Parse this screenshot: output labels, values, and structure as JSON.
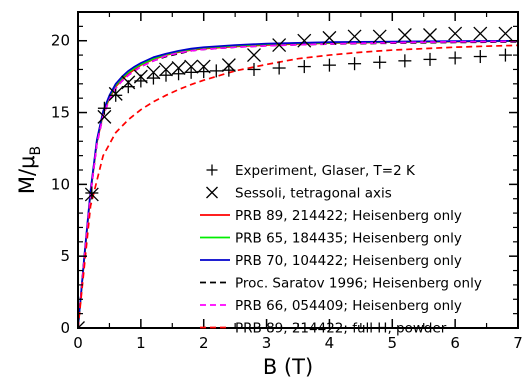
{
  "chart_data": {
    "type": "line",
    "xlabel": "B  (T)",
    "ylabel_main": "M/μ",
    "ylabel_sub": "B",
    "xlim": [
      0,
      7
    ],
    "ylim": [
      0,
      22
    ],
    "x_ticks": [
      0,
      1,
      2,
      3,
      4,
      5,
      6,
      7
    ],
    "y_ticks": [
      0,
      5,
      10,
      15,
      20
    ],
    "x_tick_labels": [
      "0",
      "1",
      "2",
      "3",
      "4",
      "5",
      "6",
      "7"
    ],
    "y_tick_labels": [
      "0",
      "5",
      "10",
      "15",
      "20"
    ],
    "grid": false,
    "legend_position": "center-right",
    "series": [
      {
        "name": "Experiment, Glaser, T=2 K",
        "style": "markers",
        "marker": "plus",
        "color": "#000000",
        "x": [
          0.0,
          0.22,
          0.42,
          0.6,
          0.8,
          1.0,
          1.2,
          1.4,
          1.6,
          1.8,
          2.0,
          2.2,
          2.4,
          2.8,
          3.2,
          3.6,
          4.0,
          4.4,
          4.8,
          5.2,
          5.6,
          6.0,
          6.4,
          6.8
        ],
        "y": [
          0.0,
          9.4,
          15.3,
          16.2,
          16.8,
          17.2,
          17.4,
          17.6,
          17.7,
          17.8,
          17.85,
          17.9,
          17.95,
          18.0,
          18.1,
          18.2,
          18.3,
          18.4,
          18.5,
          18.6,
          18.7,
          18.8,
          18.9,
          19.0
        ]
      },
      {
        "name": "Sessoli, tetragonal axis",
        "style": "markers",
        "marker": "x",
        "color": "#000000",
        "x": [
          0.0,
          0.22,
          0.42,
          0.6,
          0.8,
          1.0,
          1.2,
          1.4,
          1.6,
          1.8,
          2.0,
          2.4,
          2.8,
          3.2,
          3.6,
          4.0,
          4.4,
          4.8,
          5.2,
          5.6,
          6.0,
          6.4,
          6.8
        ],
        "y": [
          0.0,
          9.3,
          14.7,
          16.3,
          17.1,
          17.5,
          17.8,
          18.0,
          18.1,
          18.2,
          18.2,
          18.3,
          19.0,
          19.7,
          20.0,
          20.2,
          20.3,
          20.3,
          20.4,
          20.4,
          20.5,
          20.5,
          20.5
        ]
      },
      {
        "name": "PRB 89, 214422; Heisenberg only",
        "style": "solid",
        "color": "#ff0000",
        "x": [
          0,
          0.1,
          0.2,
          0.3,
          0.4,
          0.5,
          0.6,
          0.7,
          0.8,
          0.9,
          1.0,
          1.2,
          1.4,
          1.6,
          1.8,
          2.0,
          2.5,
          3.0,
          3.5,
          4.0,
          4.5,
          5.0,
          5.5,
          6.0,
          6.5,
          7.0
        ],
        "y": [
          0,
          4.8,
          9.4,
          12.9,
          14.9,
          16.0,
          16.8,
          17.3,
          17.7,
          18.0,
          18.3,
          18.7,
          19.0,
          19.2,
          19.35,
          19.45,
          19.6,
          19.7,
          19.78,
          19.83,
          19.87,
          19.9,
          19.92,
          19.94,
          19.96,
          19.97
        ]
      },
      {
        "name": "PRB 65, 184435; Heisenberg only",
        "style": "solid",
        "color": "#00ee00",
        "x": [
          0,
          0.1,
          0.2,
          0.3,
          0.4,
          0.5,
          0.6,
          0.7,
          0.8,
          0.9,
          1.0,
          1.2,
          1.4,
          1.6,
          1.8,
          2.0,
          2.5,
          3.0,
          3.5,
          4.0,
          4.5,
          5.0,
          5.5,
          6.0,
          6.5,
          7.0
        ],
        "y": [
          0,
          4.9,
          9.5,
          13.0,
          15.0,
          16.1,
          16.9,
          17.4,
          17.8,
          18.1,
          18.35,
          18.75,
          19.05,
          19.25,
          19.4,
          19.5,
          19.65,
          19.75,
          19.82,
          19.86,
          19.9,
          19.92,
          19.94,
          19.96,
          19.97,
          19.98
        ]
      },
      {
        "name": "PRB 70, 104422; Heisenberg only",
        "style": "solid",
        "color": "#0000cc",
        "x": [
          0,
          0.1,
          0.2,
          0.3,
          0.4,
          0.5,
          0.6,
          0.7,
          0.8,
          0.9,
          1.0,
          1.2,
          1.4,
          1.6,
          1.8,
          2.0,
          2.5,
          3.0,
          3.5,
          4.0,
          4.5,
          5.0,
          5.5,
          6.0,
          6.5,
          7.0
        ],
        "y": [
          0,
          5.0,
          9.6,
          13.1,
          15.1,
          16.2,
          17.0,
          17.5,
          17.9,
          18.2,
          18.45,
          18.85,
          19.1,
          19.3,
          19.45,
          19.55,
          19.7,
          19.8,
          19.85,
          19.9,
          19.92,
          19.94,
          19.96,
          19.97,
          19.98,
          19.99
        ]
      },
      {
        "name": "Proc. Saratov 1996; Heisenberg only",
        "style": "dashed",
        "color": "#000000",
        "x": [
          0,
          0.1,
          0.2,
          0.3,
          0.4,
          0.5,
          0.6,
          0.7,
          0.8,
          0.9,
          1.0,
          1.2,
          1.4,
          1.6,
          1.8,
          2.0,
          2.5,
          3.0,
          3.5,
          4.0,
          4.5,
          5.0,
          5.5,
          6.0,
          6.5,
          7.0
        ],
        "y": [
          0,
          4.8,
          9.3,
          12.8,
          14.8,
          15.9,
          16.7,
          17.2,
          17.6,
          17.9,
          18.2,
          18.6,
          18.9,
          19.1,
          19.3,
          19.4,
          19.55,
          19.65,
          19.72,
          19.77,
          19.8,
          19.83,
          19.86,
          19.88,
          19.9,
          19.92
        ]
      },
      {
        "name": "PRB 66, 054409; Heisenberg only",
        "style": "dashed",
        "color": "#ff00ff",
        "x": [
          0,
          0.1,
          0.2,
          0.3,
          0.4,
          0.5,
          0.6,
          0.7,
          0.8,
          0.9,
          1.0,
          1.2,
          1.4,
          1.6,
          1.8,
          2.0,
          2.5,
          3.0,
          3.5,
          4.0,
          4.5,
          5.0,
          5.5,
          6.0,
          6.5,
          7.0
        ],
        "y": [
          0,
          4.8,
          9.3,
          12.8,
          14.8,
          15.9,
          16.7,
          17.2,
          17.6,
          17.9,
          18.2,
          18.6,
          18.95,
          19.15,
          19.3,
          19.4,
          19.55,
          19.65,
          19.72,
          19.78,
          19.82,
          19.86,
          19.9,
          19.92,
          19.94,
          19.96
        ]
      },
      {
        "name": "PRB 89, 214422; full H, powder",
        "style": "dashed",
        "color": "#ff0000",
        "x": [
          0,
          0.2,
          0.4,
          0.6,
          0.8,
          1.0,
          1.2,
          1.4,
          1.6,
          1.8,
          2.0,
          2.5,
          3.0,
          3.5,
          4.0,
          4.5,
          5.0,
          5.5,
          6.0,
          6.5,
          7.0
        ],
        "y": [
          0,
          8.5,
          12.0,
          13.6,
          14.5,
          15.2,
          15.75,
          16.2,
          16.6,
          16.95,
          17.25,
          17.9,
          18.35,
          18.75,
          19.0,
          19.2,
          19.35,
          19.45,
          19.55,
          19.62,
          19.68
        ]
      }
    ]
  }
}
